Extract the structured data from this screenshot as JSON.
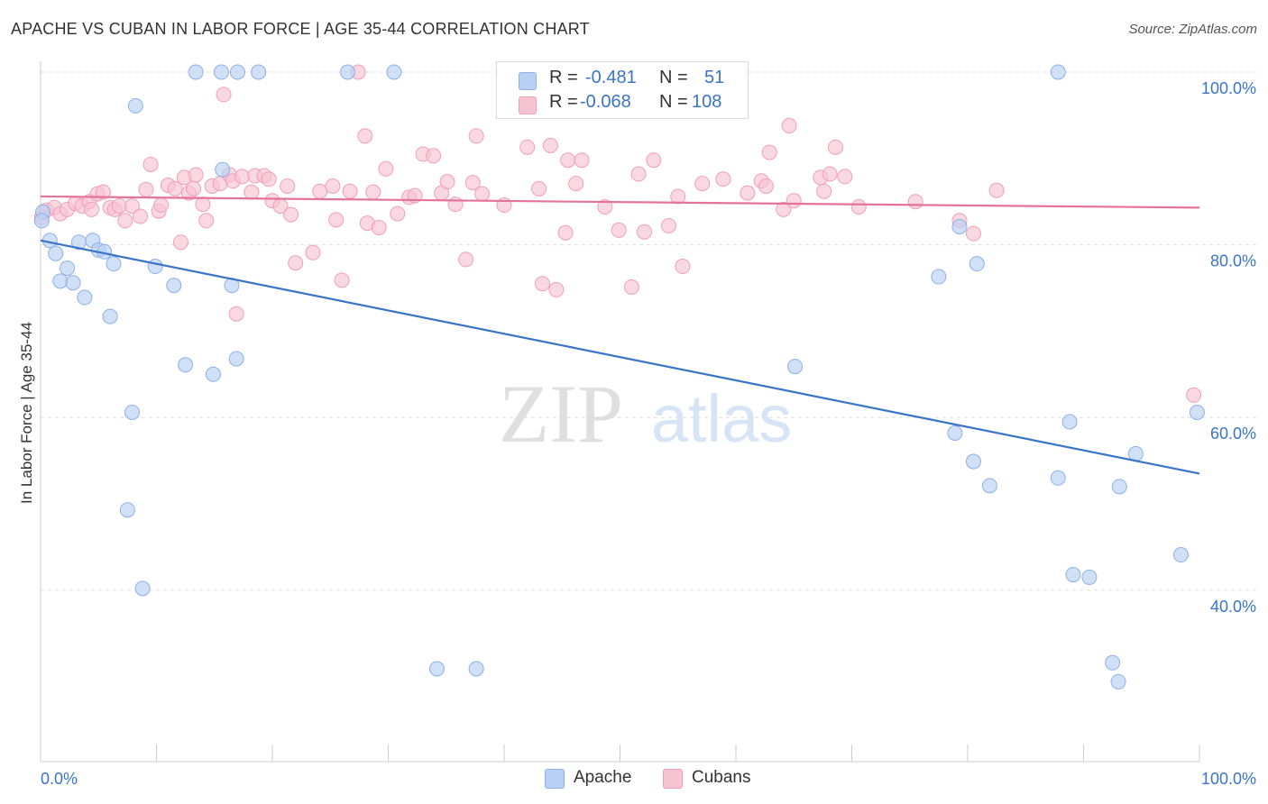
{
  "header": {
    "title": "APACHE VS CUBAN IN LABOR FORCE | AGE 35-44 CORRELATION CHART",
    "source": "Source: ZipAtlas.com"
  },
  "watermark": {
    "zip": "ZIP",
    "atlas": "atlas"
  },
  "legend": {
    "rows": [
      {
        "r_label": "R =",
        "r_value": "-0.481",
        "n_label": "N =",
        "n_value": "51"
      },
      {
        "r_label": "R =",
        "r_value": "-0.068",
        "n_label": "N =",
        "n_value": "108"
      }
    ]
  },
  "bottom_legend": {
    "apache": "Apache",
    "cubans": "Cubans"
  },
  "colors": {
    "apache_fill": "#b7d0f3",
    "apache_stroke": "#8db0e6",
    "apache_line": "#3a74c9",
    "cubans_fill": "#f7c3d3",
    "cubans_stroke": "#ef9fb8",
    "cubans_line": "#e5729a",
    "axis_label": "#3a74c9",
    "grid": "#dddddd"
  },
  "chart_data": {
    "type": "scatter",
    "title": "APACHE VS CUBAN IN LABOR FORCE | AGE 35-44 CORRELATION CHART",
    "xlabel": "",
    "ylabel": "In Labor Force | Age 35-44",
    "xlim": [
      0,
      100
    ],
    "ylim": [
      20,
      104
    ],
    "x_tick_labels": [
      "0.0%",
      "100.0%"
    ],
    "y_ticks": [
      40,
      60,
      80,
      100
    ],
    "y_tick_labels": [
      "40.0%",
      "60.0%",
      "80.0%",
      "100.0%"
    ],
    "grid": "horizontal dashed",
    "legend_position": "top-center",
    "series": [
      {
        "name": "Apache",
        "color": "#3a74c9",
        "r": -0.481,
        "n": 51,
        "trend": {
          "x": [
            0,
            100
          ],
          "y": [
            80.5,
            53.5
          ]
        },
        "points": [
          [
            0.2,
            83.8
          ],
          [
            0.8,
            80.5
          ],
          [
            1.3,
            79.0
          ],
          [
            1.7,
            75.8
          ],
          [
            2.3,
            77.3
          ],
          [
            2.8,
            75.6
          ],
          [
            3.3,
            80.3
          ],
          [
            3.8,
            73.9
          ],
          [
            4.5,
            80.5
          ],
          [
            5.0,
            79.4
          ],
          [
            5.5,
            79.2
          ],
          [
            6.0,
            71.7
          ],
          [
            6.3,
            77.8
          ],
          [
            7.5,
            49.3
          ],
          [
            7.9,
            60.6
          ],
          [
            8.2,
            96.1
          ],
          [
            8.8,
            40.2
          ],
          [
            9.9,
            77.5
          ],
          [
            11.5,
            75.3
          ],
          [
            12.5,
            66.1
          ],
          [
            13.4,
            100.0
          ],
          [
            14.9,
            65.0
          ],
          [
            15.6,
            100.0
          ],
          [
            15.7,
            88.7
          ],
          [
            16.5,
            75.3
          ],
          [
            16.9,
            66.8
          ],
          [
            17.0,
            100.0
          ],
          [
            18.8,
            100.0
          ],
          [
            26.5,
            100.0
          ],
          [
            30.5,
            100.0
          ],
          [
            34.2,
            30.9
          ],
          [
            37.6,
            30.9
          ],
          [
            65.1,
            65.9
          ],
          [
            77.5,
            76.3
          ],
          [
            78.9,
            58.2
          ],
          [
            79.3,
            82.1
          ],
          [
            80.5,
            54.9
          ],
          [
            80.8,
            77.8
          ],
          [
            81.9,
            52.1
          ],
          [
            87.8,
            53.0
          ],
          [
            87.8,
            100.0
          ],
          [
            88.8,
            59.5
          ],
          [
            89.1,
            41.8
          ],
          [
            90.5,
            41.5
          ],
          [
            92.5,
            31.6
          ],
          [
            93.0,
            29.4
          ],
          [
            93.1,
            52.0
          ],
          [
            94.5,
            55.8
          ],
          [
            98.4,
            44.1
          ],
          [
            99.8,
            60.6
          ],
          [
            0.1,
            82.8
          ]
        ]
      },
      {
        "name": "Cubans",
        "color": "#e5729a",
        "r": -0.068,
        "n": 108,
        "trend": {
          "x": [
            0,
            100
          ],
          "y": [
            85.6,
            84.3
          ]
        },
        "points": [
          [
            0.1,
            83.2
          ],
          [
            0.5,
            84.0
          ],
          [
            1.2,
            84.3
          ],
          [
            1.7,
            83.6
          ],
          [
            2.3,
            84.1
          ],
          [
            3.0,
            84.8
          ],
          [
            3.6,
            84.5
          ],
          [
            4.2,
            85.0
          ],
          [
            4.4,
            84.1
          ],
          [
            4.9,
            85.9
          ],
          [
            5.4,
            86.1
          ],
          [
            6.0,
            84.3
          ],
          [
            6.4,
            84.1
          ],
          [
            6.8,
            84.5
          ],
          [
            7.3,
            82.8
          ],
          [
            7.9,
            84.5
          ],
          [
            8.6,
            83.3
          ],
          [
            9.1,
            86.4
          ],
          [
            9.5,
            89.3
          ],
          [
            10.2,
            83.9
          ],
          [
            10.4,
            84.6
          ],
          [
            11.0,
            86.9
          ],
          [
            11.6,
            86.5
          ],
          [
            12.1,
            80.3
          ],
          [
            12.4,
            87.8
          ],
          [
            12.8,
            86.0
          ],
          [
            13.2,
            86.5
          ],
          [
            13.4,
            88.1
          ],
          [
            14.0,
            84.7
          ],
          [
            14.3,
            82.8
          ],
          [
            14.8,
            86.8
          ],
          [
            15.5,
            87.1
          ],
          [
            15.8,
            97.4
          ],
          [
            16.3,
            88.1
          ],
          [
            16.6,
            87.4
          ],
          [
            16.9,
            72.0
          ],
          [
            17.4,
            87.9
          ],
          [
            18.2,
            86.1
          ],
          [
            18.5,
            88.0
          ],
          [
            19.3,
            88.0
          ],
          [
            19.7,
            87.6
          ],
          [
            20.0,
            85.1
          ],
          [
            20.7,
            84.5
          ],
          [
            21.3,
            86.8
          ],
          [
            21.6,
            83.5
          ],
          [
            22.0,
            77.9
          ],
          [
            23.5,
            79.1
          ],
          [
            24.1,
            86.2
          ],
          [
            25.2,
            86.8
          ],
          [
            25.5,
            82.9
          ],
          [
            26.0,
            75.9
          ],
          [
            26.7,
            86.2
          ],
          [
            27.4,
            100.0
          ],
          [
            28.0,
            92.6
          ],
          [
            28.2,
            82.5
          ],
          [
            28.7,
            86.1
          ],
          [
            29.2,
            82.0
          ],
          [
            29.8,
            88.8
          ],
          [
            30.8,
            83.6
          ],
          [
            31.8,
            85.5
          ],
          [
            32.3,
            85.7
          ],
          [
            33.0,
            90.5
          ],
          [
            33.9,
            90.3
          ],
          [
            34.6,
            86.0
          ],
          [
            35.1,
            87.3
          ],
          [
            35.8,
            84.7
          ],
          [
            36.7,
            78.3
          ],
          [
            37.3,
            87.2
          ],
          [
            37.6,
            92.6
          ],
          [
            38.1,
            85.9
          ],
          [
            40.0,
            84.6
          ],
          [
            42.0,
            91.3
          ],
          [
            43.0,
            86.5
          ],
          [
            43.3,
            75.5
          ],
          [
            44.0,
            91.5
          ],
          [
            44.5,
            74.8
          ],
          [
            45.3,
            81.4
          ],
          [
            45.5,
            89.8
          ],
          [
            46.2,
            87.1
          ],
          [
            46.7,
            89.8
          ],
          [
            48.7,
            84.4
          ],
          [
            49.9,
            81.7
          ],
          [
            51.0,
            75.1
          ],
          [
            51.6,
            88.2
          ],
          [
            52.1,
            81.5
          ],
          [
            52.9,
            89.8
          ],
          [
            54.2,
            82.2
          ],
          [
            55.0,
            85.6
          ],
          [
            55.4,
            77.5
          ],
          [
            57.1,
            87.1
          ],
          [
            58.9,
            87.6
          ],
          [
            61.0,
            86.0
          ],
          [
            62.2,
            87.4
          ],
          [
            62.6,
            86.8
          ],
          [
            62.9,
            90.7
          ],
          [
            64.1,
            84.1
          ],
          [
            64.6,
            93.8
          ],
          [
            65.0,
            85.1
          ],
          [
            67.3,
            87.8
          ],
          [
            67.6,
            86.2
          ],
          [
            68.1,
            88.2
          ],
          [
            68.6,
            91.3
          ],
          [
            69.4,
            87.9
          ],
          [
            70.6,
            84.4
          ],
          [
            75.5,
            85.0
          ],
          [
            79.3,
            82.8
          ],
          [
            80.5,
            81.3
          ],
          [
            82.5,
            86.3
          ],
          [
            99.5,
            62.6
          ]
        ]
      }
    ]
  }
}
